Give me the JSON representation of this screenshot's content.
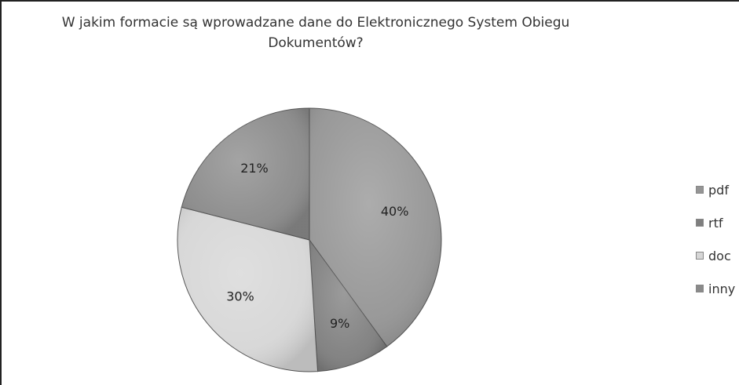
{
  "chart_data": {
    "type": "pie",
    "title_lines": [
      "W jakim formacie są wprowadzane dane do Elektronicznego System Obiegu",
      "Dokumentów?"
    ],
    "categories": [
      "pdf",
      "rtf",
      "doc",
      "inny"
    ],
    "values": [
      40,
      9,
      30,
      21
    ],
    "data_labels": [
      "40%",
      "9%",
      "30%",
      "21%"
    ],
    "colors": [
      "#959595",
      "#7f7f7f",
      "#d6d6d6",
      "#8a8a8a"
    ],
    "legend_position": "right",
    "start_angle_deg": 0,
    "direction": "clockwise"
  }
}
